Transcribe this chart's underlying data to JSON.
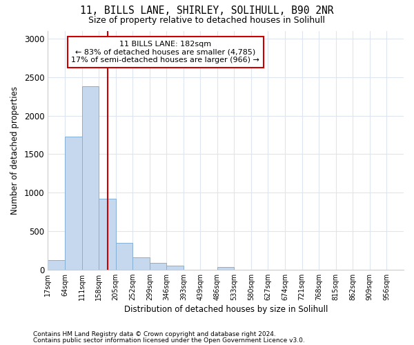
{
  "title1": "11, BILLS LANE, SHIRLEY, SOLIHULL, B90 2NR",
  "title2": "Size of property relative to detached houses in Solihull",
  "xlabel": "Distribution of detached houses by size in Solihull",
  "ylabel": "Number of detached properties",
  "footnote1": "Contains HM Land Registry data © Crown copyright and database right 2024.",
  "footnote2": "Contains public sector information licensed under the Open Government Licence v3.0.",
  "annotation_line1": "11 BILLS LANE: 182sqm",
  "annotation_line2": "← 83% of detached houses are smaller (4,785)",
  "annotation_line3": "17% of semi-detached houses are larger (966) →",
  "bar_color": "#c5d8ee",
  "bar_edge_color": "#85afd4",
  "reference_line_color": "#cc0000",
  "reference_line_x": 182,
  "bin_edges": [
    17,
    64,
    111,
    158,
    205,
    252,
    299,
    346,
    393,
    439,
    486,
    533,
    580,
    627,
    674,
    721,
    768,
    815,
    862,
    909,
    956
  ],
  "bin_counts": [
    120,
    1730,
    2380,
    920,
    350,
    155,
    90,
    55,
    0,
    0,
    35,
    0,
    0,
    0,
    0,
    0,
    0,
    0,
    0,
    0
  ],
  "ylim": [
    0,
    3100
  ],
  "yticks": [
    0,
    500,
    1000,
    1500,
    2000,
    2500,
    3000
  ],
  "background_color": "#ffffff",
  "plot_bg_color": "#ffffff",
  "grid_color": "#dde5f0"
}
